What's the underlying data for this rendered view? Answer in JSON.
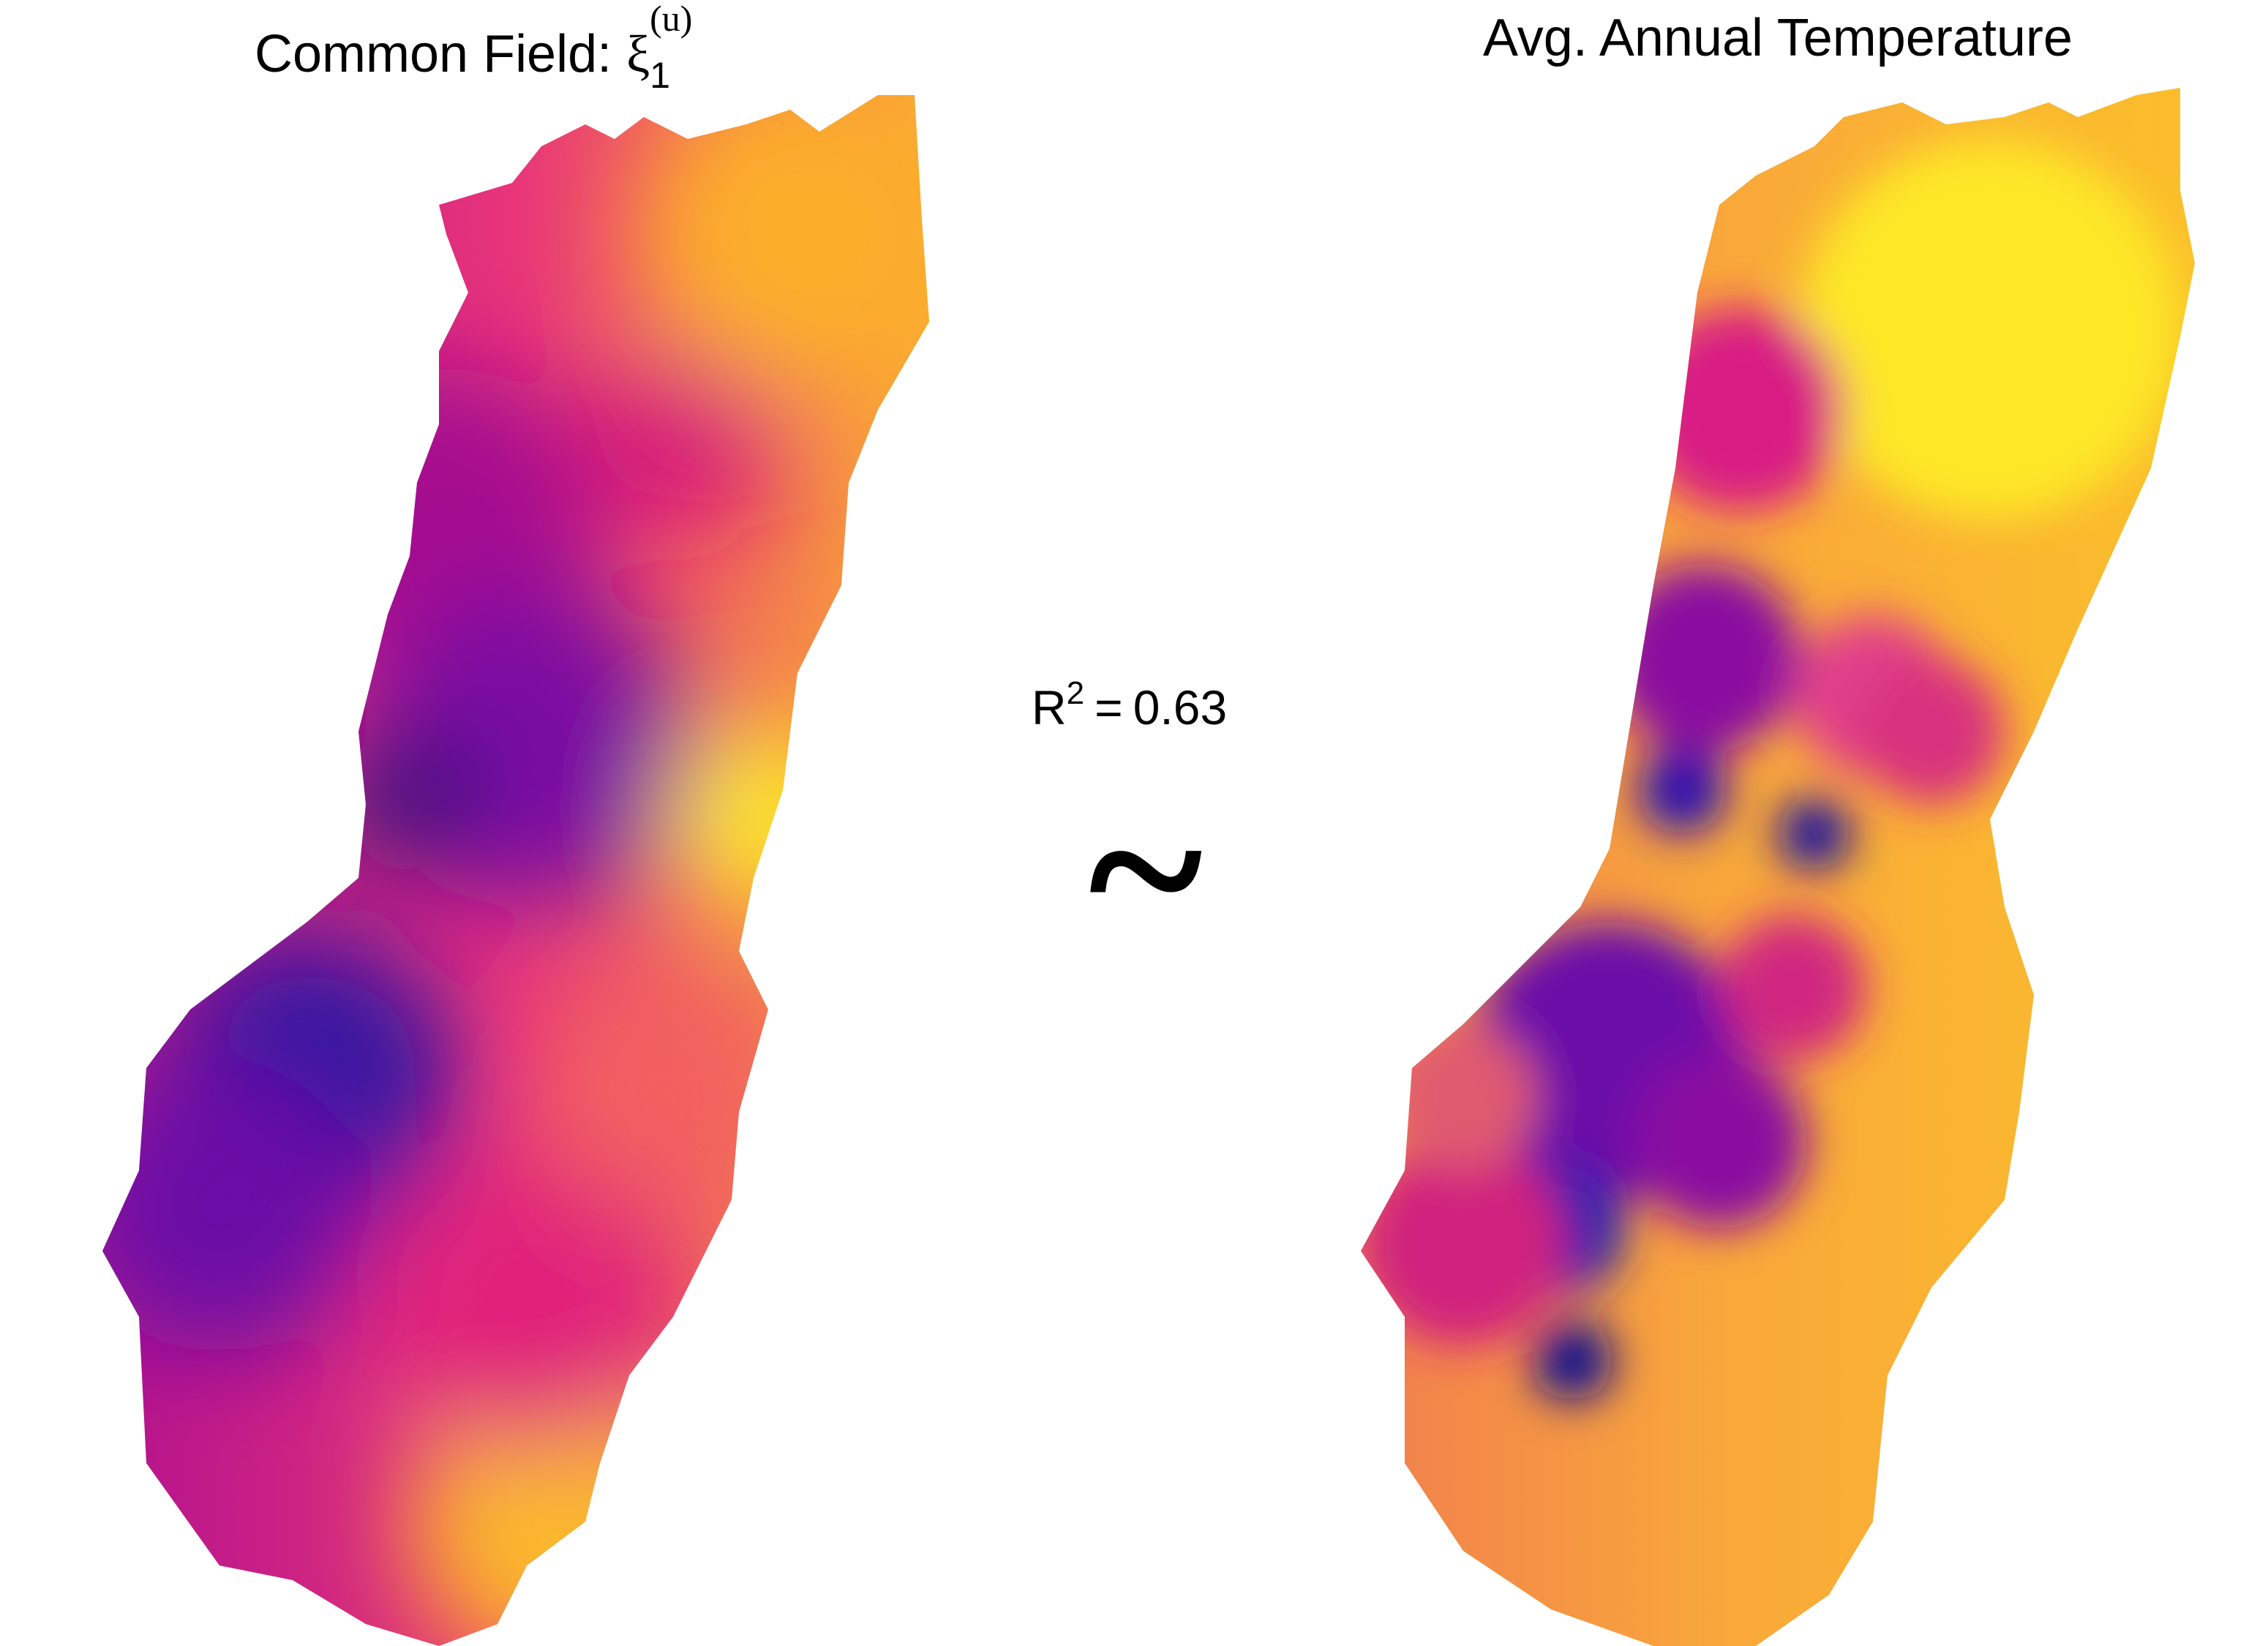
{
  "left_panel": {
    "title": {
      "text": "Common Field: ",
      "symbol": "ξ",
      "subscript": "1",
      "superscript": "(u)"
    }
  },
  "right_panel": {
    "title": "Avg. Annual Temperature"
  },
  "annotation": {
    "base": "R",
    "superscript": "2",
    "equals": "=",
    "value": 0.63,
    "relation": "~"
  }
}
